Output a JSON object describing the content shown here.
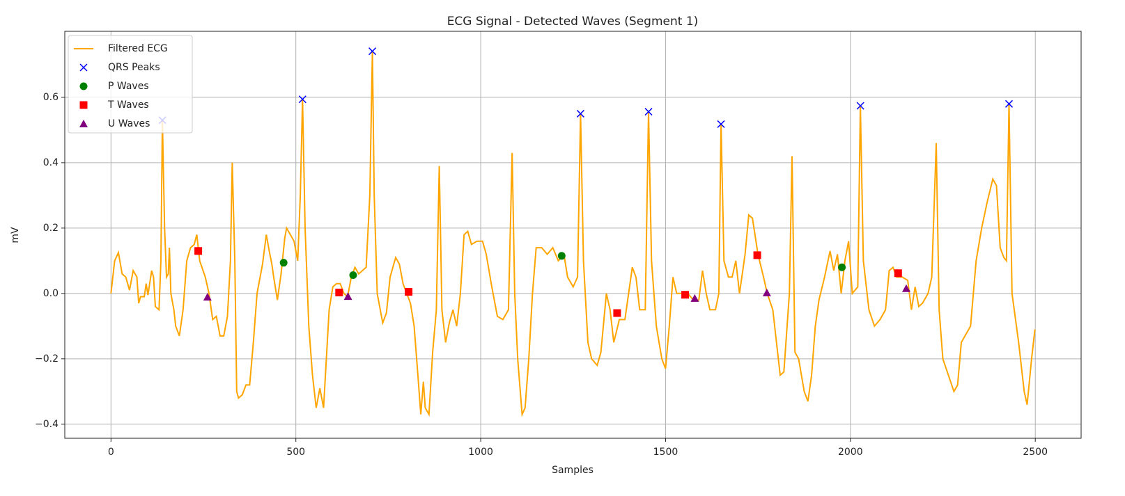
{
  "chart_data": {
    "type": "line",
    "title": "ECG Signal - Detected Waves (Segment 1)",
    "xlabel": "Samples",
    "ylabel": "mV",
    "xlim": [
      -125,
      2624
    ],
    "ylim": [
      -0.443,
      0.802
    ],
    "xticks": [
      0,
      500,
      1000,
      1500,
      2000,
      2500
    ],
    "yticks": [
      {
        "value": -0.4,
        "label": "−0.4"
      },
      {
        "value": -0.2,
        "label": "−0.2"
      },
      {
        "value": 0,
        "label": "0.0"
      },
      0.2,
      0.4,
      0.6
    ],
    "grid": true,
    "legend": "upper left",
    "series": [
      {
        "name": "Filtered ECG",
        "color": "#ffa500",
        "marker": "line",
        "x": [
          0,
          10,
          20,
          30,
          40,
          50,
          60,
          70,
          75,
          80,
          90,
          95,
          100,
          110,
          115,
          120,
          130,
          135,
          139,
          145,
          150,
          155,
          158,
          162,
          170,
          175,
          185,
          195,
          205,
          215,
          225,
          232,
          240,
          255,
          265,
          275,
          285,
          295,
          305,
          315,
          323,
          328,
          335,
          340,
          345,
          355,
          365,
          375,
          385,
          395,
          410,
          420,
          428,
          435,
          440,
          450,
          460,
          470,
          475,
          485,
          495,
          505,
          512,
          518,
          525,
          535,
          545,
          555,
          565,
          575,
          590,
          600,
          610,
          620,
          630,
          640,
          650,
          660,
          670,
          690,
          700,
          707,
          712,
          720,
          735,
          745,
          755,
          770,
          780,
          790,
          800,
          810,
          820,
          830,
          838,
          845,
          850,
          860,
          870,
          880,
          888,
          895,
          905,
          915,
          925,
          935,
          945,
          955,
          965,
          975,
          990,
          1005,
          1015,
          1030,
          1045,
          1060,
          1075,
          1085,
          1092,
          1100,
          1112,
          1120,
          1130,
          1140,
          1150,
          1165,
          1180,
          1195,
          1210,
          1225,
          1235,
          1250,
          1262,
          1270,
          1278,
          1290,
          1300,
          1315,
          1325,
          1340,
          1350,
          1360,
          1375,
          1390,
          1400,
          1410,
          1420,
          1430,
          1445,
          1454,
          1462,
          1475,
          1490,
          1500,
          1510,
          1520,
          1530,
          1545,
          1560,
          1575,
          1590,
          1600,
          1610,
          1620,
          1635,
          1644,
          1650,
          1658,
          1670,
          1680,
          1690,
          1700,
          1715,
          1725,
          1735,
          1750,
          1765,
          1775,
          1790,
          1800,
          1810,
          1820,
          1835,
          1842,
          1850,
          1860,
          1875,
          1885,
          1895,
          1905,
          1915,
          1930,
          1945,
          1955,
          1965,
          1975,
          1985,
          1995,
          2005,
          2020,
          2027,
          2035,
          2050,
          2065,
          2080,
          2095,
          2105,
          2115,
          2125,
          2140,
          2155,
          2165,
          2175,
          2185,
          2195,
          2210,
          2220,
          2232,
          2240,
          2250,
          2265,
          2280,
          2290,
          2300,
          2310,
          2325,
          2340,
          2355,
          2370,
          2385,
          2395,
          2405,
          2415,
          2422,
          2429,
          2437,
          2455,
          2470,
          2478,
          2490,
          2499
        ],
        "values": [
          0,
          0.1,
          0.125,
          0.06,
          0.05,
          0.01,
          0.07,
          0.05,
          -0.03,
          -0.01,
          -0.01,
          0.03,
          -0.005,
          0.07,
          0.05,
          -0.04,
          -0.05,
          0.1,
          0.53,
          0.2,
          0.05,
          0.06,
          0.14,
          0,
          -0.05,
          -0.1,
          -0.13,
          -0.05,
          0.1,
          0.14,
          0.15,
          0.18,
          0.1,
          0.05,
          0,
          -0.08,
          -0.07,
          -0.13,
          -0.13,
          -0.07,
          0.1,
          0.4,
          0.1,
          -0.3,
          -0.32,
          -0.31,
          -0.28,
          -0.28,
          -0.15,
          0,
          0.09,
          0.18,
          0.13,
          0.09,
          0.05,
          -0.02,
          0.06,
          0.17,
          0.2,
          0.18,
          0.16,
          0.1,
          0.3,
          0.594,
          0.2,
          -0.1,
          -0.25,
          -0.35,
          -0.29,
          -0.35,
          -0.05,
          0.02,
          0.03,
          0.03,
          0,
          -0.01,
          0.05,
          0.08,
          0.06,
          0.08,
          0.3,
          0.741,
          0.3,
          0,
          -0.09,
          -0.06,
          0.05,
          0.11,
          0.09,
          0.03,
          0,
          -0.03,
          -0.1,
          -0.25,
          -0.37,
          -0.27,
          -0.35,
          -0.37,
          -0.18,
          -0.05,
          0.39,
          -0.05,
          -0.15,
          -0.09,
          -0.05,
          -0.1,
          0,
          0.18,
          0.19,
          0.15,
          0.16,
          0.16,
          0.12,
          0.02,
          -0.07,
          -0.08,
          -0.05,
          0.43,
          0,
          -0.2,
          -0.37,
          -0.35,
          -0.2,
          0,
          0.14,
          0.14,
          0.12,
          0.14,
          0.1,
          0.12,
          0.05,
          0.02,
          0.05,
          0.55,
          0.1,
          -0.15,
          -0.2,
          -0.22,
          -0.18,
          0,
          -0.05,
          -0.15,
          -0.08,
          -0.08,
          0,
          0.08,
          0.05,
          -0.05,
          -0.05,
          0.556,
          0.1,
          -0.1,
          -0.2,
          -0.23,
          -0.1,
          0.05,
          0,
          0,
          0,
          -0.02,
          -0.02,
          0.07,
          0,
          -0.05,
          -0.05,
          0,
          0.518,
          0.1,
          0.05,
          0.05,
          0.1,
          0,
          0.12,
          0.24,
          0.23,
          0.12,
          0.05,
          0,
          -0.05,
          -0.15,
          -0.25,
          -0.24,
          0,
          0.42,
          -0.18,
          -0.2,
          -0.3,
          -0.33,
          -0.25,
          -0.1,
          -0.02,
          0.05,
          0.13,
          0.07,
          0.12,
          0,
          0.1,
          0.16,
          0,
          0.02,
          0.574,
          0.1,
          -0.05,
          -0.1,
          -0.08,
          -0.05,
          0.07,
          0.08,
          0.05,
          0.05,
          0.04,
          -0.05,
          0.02,
          -0.04,
          -0.03,
          0,
          0.05,
          0.46,
          -0.05,
          -0.2,
          -0.25,
          -0.3,
          -0.28,
          -0.15,
          -0.13,
          -0.1,
          0.1,
          0.2,
          0.28,
          0.35,
          0.33,
          0.14,
          0.11,
          0.1,
          0.58,
          0,
          -0.15,
          -0.3,
          -0.34,
          -0.2,
          -0.11
        ]
      },
      {
        "name": "QRS Peaks",
        "color": "#0000ff",
        "marker": "x",
        "x": [
          139,
          518,
          707,
          1270,
          1454,
          1650,
          2027,
          2429
        ],
        "values": [
          0.53,
          0.594,
          0.741,
          0.55,
          0.556,
          0.518,
          0.574,
          0.58
        ]
      },
      {
        "name": "P Waves",
        "color": "#008000",
        "marker": "o",
        "x": [
          467,
          655,
          1219,
          1977
        ],
        "values": [
          0.094,
          0.056,
          0.115,
          0.08
        ]
      },
      {
        "name": "T Waves",
        "color": "#ff0000",
        "marker": "s",
        "x": [
          236,
          617,
          805,
          1369,
          1553,
          1748,
          2129
        ],
        "values": [
          0.13,
          0.003,
          0.005,
          -0.06,
          -0.004,
          0.117,
          0.062
        ]
      },
      {
        "name": "U Waves",
        "color": "#800080",
        "marker": "^",
        "x": [
          261,
          641,
          1579,
          1774,
          2151
        ],
        "values": [
          -0.011,
          -0.009,
          -0.015,
          0.002,
          0.015
        ]
      }
    ]
  }
}
